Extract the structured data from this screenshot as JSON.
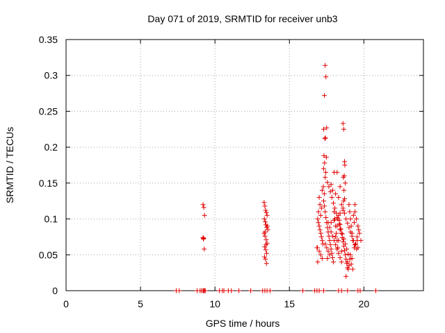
{
  "chart_data": {
    "type": "scatter",
    "title": "Day 071 of 2019, SRMTID for receiver unb3",
    "xlabel": "GPS time / hours",
    "ylabel": "SRMTID / TECUs",
    "xlim": [
      0,
      24
    ],
    "ylim": [
      0,
      0.35
    ],
    "xticks": [
      0,
      5,
      10,
      15,
      20
    ],
    "xtick_labels": [
      "0",
      "5",
      "10",
      "15",
      "20"
    ],
    "yticks": [
      0,
      0.05,
      0.1,
      0.15,
      0.2,
      0.25,
      0.3,
      0.35
    ],
    "ytick_labels": [
      "0",
      "0.05",
      "0.1",
      "0.15",
      "0.2",
      "0.25",
      "0.3",
      "0.35"
    ],
    "grid": true,
    "marker": "+",
    "colors": {
      "points": "#e00000",
      "axes": "#000000",
      "grid": "#a0a0a0"
    },
    "series": [
      {
        "name": "SRMTID",
        "x": [
          7.4,
          7.6,
          8.8,
          9.0,
          9.1,
          9.2,
          9.25,
          9.3,
          9.35,
          10.3,
          10.5,
          10.6,
          10.9,
          11.1,
          11.6,
          12.4,
          13.2,
          13.35,
          13.5,
          13.7,
          15.9,
          16.7,
          16.85,
          17.0,
          17.3,
          18.3,
          18.5,
          18.9,
          19.6,
          19.75,
          20.8,
          9.2,
          9.25,
          9.3,
          9.2,
          9.22,
          9.28,
          9.24,
          13.3,
          13.35,
          13.4,
          13.45,
          13.5,
          13.32,
          13.38,
          13.42,
          13.48,
          13.55,
          13.3,
          13.36,
          13.44,
          13.5,
          13.34,
          13.41,
          13.47,
          13.33,
          13.39,
          13.46,
          13.52,
          13.37,
          13.43,
          17.4,
          17.45,
          17.35,
          17.3,
          17.5,
          17.42,
          17.38,
          17.32,
          17.48,
          17.36,
          17.3,
          17.44,
          17.4,
          17.55,
          17.28,
          17.34,
          16.9,
          16.95,
          17.0,
          17.05,
          17.1,
          17.15,
          17.2,
          17.25,
          16.85,
          17.0,
          17.1,
          17.2,
          16.9,
          17.05,
          17.15,
          16.95,
          17.1,
          17.0,
          17.2,
          16.88,
          17.3,
          17.35,
          17.4,
          17.45,
          17.5,
          17.55,
          17.6,
          17.65,
          17.7,
          17.75,
          17.8,
          17.85,
          17.9,
          17.95,
          18.0,
          18.05,
          18.1,
          18.15,
          18.2,
          18.25,
          18.3,
          18.35,
          18.4,
          18.45,
          18.5,
          18.55,
          18.6,
          18.65,
          18.7,
          18.75,
          18.8,
          18.85,
          18.9,
          18.95,
          19.0,
          19.05,
          19.1,
          19.15,
          19.2,
          19.25,
          17.6,
          17.7,
          17.8,
          17.9,
          18.0,
          18.1,
          18.2,
          18.3,
          18.4,
          18.5,
          18.6,
          18.7,
          18.8,
          18.9,
          19.0,
          19.1,
          19.2,
          19.3,
          19.4,
          19.5,
          17.65,
          17.75,
          17.85,
          17.95,
          18.05,
          18.15,
          18.25,
          18.35,
          18.45,
          18.55,
          18.65,
          18.75,
          18.85,
          18.95,
          19.05,
          19.15,
          19.25,
          19.35,
          19.45,
          19.55,
          18.6,
          18.65,
          18.7,
          18.72,
          18.68,
          18.62,
          18.75,
          18.66,
          18.7,
          18.64,
          19.4,
          19.5,
          19.6,
          19.7,
          19.8,
          19.45,
          19.55,
          19.65,
          19.35,
          19.6,
          18.0,
          18.2,
          18.4,
          17.8,
          17.9,
          18.1,
          18.3,
          18.5,
          19.3,
          19.4,
          17.5,
          17.6,
          17.7,
          17.4,
          17.55,
          18.9,
          19.1,
          19.2,
          19.0,
          18.8,
          17.8,
          18.0,
          18.2,
          18.4,
          18.6,
          18.2,
          18.4,
          18.1,
          18.3,
          18.5
        ],
        "y": [
          0,
          0,
          0,
          0,
          0,
          0,
          0,
          0,
          0,
          0,
          0,
          0,
          0,
          0,
          0,
          0,
          0,
          0,
          0,
          0,
          0,
          0,
          0,
          0,
          0,
          0,
          0,
          0,
          0,
          0,
          0,
          0.12,
          0.116,
          0.105,
          0.074,
          0.072,
          0.058,
          0.073,
          0.123,
          0.118,
          0.112,
          0.109,
          0.105,
          0.1,
          0.096,
          0.092,
          0.088,
          0.085,
          0.08,
          0.076,
          0.071,
          0.066,
          0.061,
          0.057,
          0.052,
          0.047,
          0.044,
          0.038,
          0.09,
          0.082,
          0.064,
          0.314,
          0.298,
          0.272,
          0.225,
          0.227,
          0.213,
          0.212,
          0.188,
          0.186,
          0.178,
          0.17,
          0.165,
          0.158,
          0.151,
          0.145,
          0.135,
          0.1,
          0.095,
          0.09,
          0.085,
          0.08,
          0.075,
          0.07,
          0.065,
          0.06,
          0.055,
          0.05,
          0.045,
          0.04,
          0.12,
          0.115,
          0.11,
          0.105,
          0.13,
          0.14,
          0.06,
          0.125,
          0.118,
          0.11,
          0.102,
          0.095,
          0.088,
          0.082,
          0.076,
          0.07,
          0.064,
          0.058,
          0.052,
          0.046,
          0.04,
          0.11,
          0.1,
          0.09,
          0.08,
          0.07,
          0.06,
          0.105,
          0.098,
          0.092,
          0.086,
          0.08,
          0.074,
          0.068,
          0.062,
          0.056,
          0.05,
          0.044,
          0.038,
          0.032,
          0.03,
          0.12,
          0.11,
          0.1,
          0.09,
          0.08,
          0.07,
          0.095,
          0.088,
          0.082,
          0.076,
          0.07,
          0.064,
          0.058,
          0.052,
          0.046,
          0.04,
          0.115,
          0.108,
          0.1,
          0.094,
          0.088,
          0.082,
          0.076,
          0.07,
          0.064,
          0.058,
          0.145,
          0.138,
          0.13,
          0.122,
          0.115,
          0.108,
          0.1,
          0.093,
          0.086,
          0.079,
          0.072,
          0.065,
          0.058,
          0.051,
          0.044,
          0.037,
          0.03,
          0.06,
          0.065,
          0.07,
          0.233,
          0.225,
          0.18,
          0.175,
          0.16,
          0.158,
          0.15,
          0.14,
          0.128,
          0.125,
          0.11,
          0.1,
          0.09,
          0.08,
          0.07,
          0.065,
          0.075,
          0.085,
          0.095,
          0.06,
          0.165,
          0.165,
          0.145,
          0.148,
          0.14,
          0.135,
          0.13,
          0.12,
          0.105,
          0.12,
          0.06,
          0.055,
          0.05,
          0.065,
          0.045,
          0.04,
          0.05,
          0.045,
          0.035,
          0.02,
          0.095,
          0.098,
          0.102,
          0.108,
          0.112,
          0.09,
          0.085,
          0.075,
          0.07,
          0.055
        ]
      }
    ]
  }
}
